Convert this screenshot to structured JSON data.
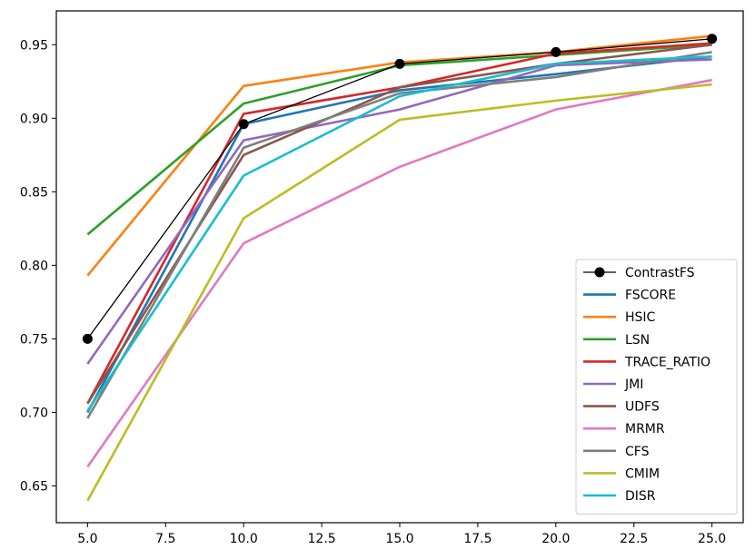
{
  "chart_data": {
    "type": "line",
    "title": "",
    "xlabel": "",
    "ylabel": "",
    "xlim": [
      4.0,
      26.0
    ],
    "ylim": [
      0.625,
      0.973
    ],
    "xticks": [
      "5.0",
      "7.5",
      "10.0",
      "12.5",
      "15.0",
      "17.5",
      "20.0",
      "22.5",
      "25.0"
    ],
    "xtick_values": [
      5,
      7.5,
      10,
      12.5,
      15,
      17.5,
      20,
      22.5,
      25
    ],
    "yticks": [
      "0.65",
      "0.70",
      "0.75",
      "0.80",
      "0.85",
      "0.90",
      "0.95"
    ],
    "ytick_values": [
      0.65,
      0.7,
      0.75,
      0.8,
      0.85,
      0.9,
      0.95
    ],
    "grid": false,
    "legend_position": "lower-right",
    "x": [
      5,
      10,
      15,
      20,
      25
    ],
    "series": [
      {
        "name": "ContrastFS",
        "color": "#000000",
        "marker": "circle",
        "values": [
          0.75,
          0.896,
          0.937,
          0.945,
          0.954
        ]
      },
      {
        "name": "FSCORE",
        "color": "#1f77b4",
        "values": [
          0.7,
          0.896,
          0.919,
          0.93,
          0.942
        ]
      },
      {
        "name": "HSIC",
        "color": "#ff7f0e",
        "values": [
          0.793,
          0.922,
          0.938,
          0.945,
          0.956
        ]
      },
      {
        "name": "LSN",
        "color": "#2ca02c",
        "values": [
          0.821,
          0.91,
          0.936,
          0.943,
          0.95
        ]
      },
      {
        "name": "TRACE_RATIO",
        "color": "#d62728",
        "values": [
          0.706,
          0.903,
          0.921,
          0.944,
          0.951
        ]
      },
      {
        "name": "JMI",
        "color": "#9467bd",
        "values": [
          0.733,
          0.885,
          0.906,
          0.936,
          0.94
        ]
      },
      {
        "name": "UDFS",
        "color": "#8c564b",
        "values": [
          0.706,
          0.875,
          0.921,
          0.937,
          0.95
        ]
      },
      {
        "name": "MRMR",
        "color": "#e377c2",
        "values": [
          0.663,
          0.815,
          0.867,
          0.906,
          0.926
        ]
      },
      {
        "name": "CFS",
        "color": "#7f7f7f",
        "values": [
          0.696,
          0.88,
          0.917,
          0.928,
          0.945
        ]
      },
      {
        "name": "CMIM",
        "color": "#bcbd22",
        "values": [
          0.64,
          0.832,
          0.899,
          0.912,
          0.923
        ]
      },
      {
        "name": "DISR",
        "color": "#17becf",
        "values": [
          0.701,
          0.861,
          0.915,
          0.937,
          0.942
        ]
      }
    ]
  }
}
